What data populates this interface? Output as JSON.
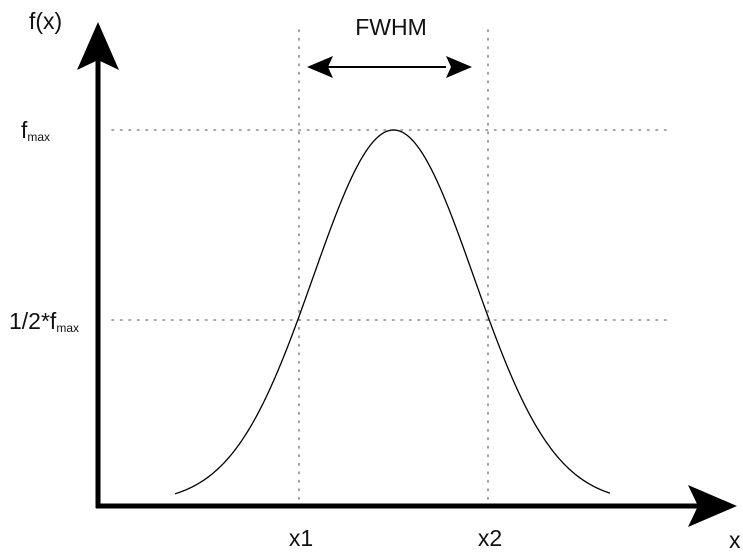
{
  "diagram": {
    "y_axis_label": "f(x)",
    "x_axis_label": "x",
    "fwhm_label": "FWHM",
    "fmax_label": {
      "main": "f",
      "sub": "max"
    },
    "half_max_label": {
      "main": "1/2*f",
      "sub": "max"
    },
    "x1_label": "x1",
    "x2_label": "x2"
  },
  "colors": {
    "axis": "#000000",
    "curve": "#000000",
    "guide": "#888888",
    "text": "#111111"
  }
}
